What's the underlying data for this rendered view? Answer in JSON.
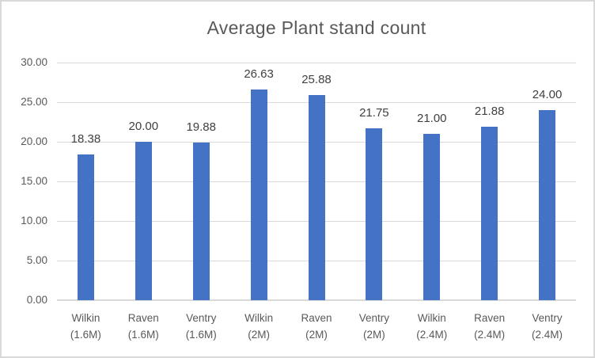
{
  "chart_data": {
    "type": "bar",
    "title": "Average Plant stand count",
    "categories": [
      "Wilkin (1.6M)",
      "Raven (1.6M)",
      "Ventry (1.6M)",
      "Wilkin (2M)",
      "Raven (2M)",
      "Ventry (2M)",
      "Wilkin (2.4M)",
      "Raven (2.4M)",
      "Ventry (2.4M)"
    ],
    "category_lines": [
      [
        "Wilkin",
        "(1.6M)"
      ],
      [
        "Raven",
        "(1.6M)"
      ],
      [
        "Ventry",
        "(1.6M)"
      ],
      [
        "Wilkin",
        "(2M)"
      ],
      [
        "Raven",
        "(2M)"
      ],
      [
        "Ventry",
        "(2M)"
      ],
      [
        "Wilkin",
        "(2.4M)"
      ],
      [
        "Raven",
        "(2.4M)"
      ],
      [
        "Ventry",
        "(2.4M)"
      ]
    ],
    "values": [
      18.38,
      20.0,
      19.88,
      26.63,
      25.88,
      21.75,
      21.0,
      21.88,
      24.0
    ],
    "value_labels": [
      "18.38",
      "20.00",
      "19.88",
      "26.63",
      "25.88",
      "21.75",
      "21.00",
      "21.88",
      "24.00"
    ],
    "xlabel": "",
    "ylabel": "",
    "ylim": [
      0,
      30
    ],
    "ytick_step": 5,
    "ytick_labels": [
      "0.00",
      "5.00",
      "10.00",
      "15.00",
      "20.00",
      "25.00",
      "30.00"
    ],
    "grid": true,
    "legend": false,
    "colors": {
      "bar": "#4472C4",
      "gridline": "#d9d9d9",
      "axis_text": "#595959",
      "data_label_text": "#404040",
      "title_text": "#595959",
      "frame_border": "#d9d9d9"
    }
  }
}
